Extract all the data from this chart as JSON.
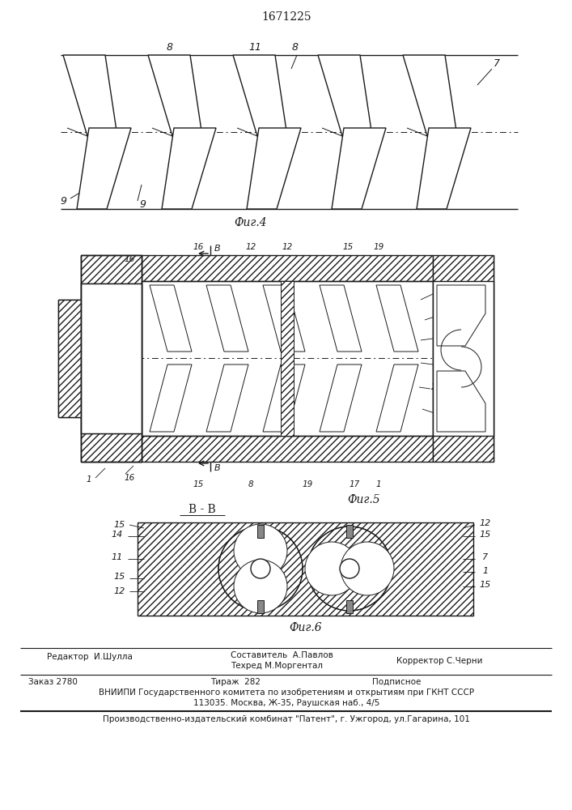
{
  "patent_number": "1671225",
  "bg_color": "#ffffff",
  "line_color": "#1a1a1a",
  "footer": {
    "editor": "Редактор  И.Шулла",
    "composer_label": "Составитель  А.Павлов",
    "techred_label": "Техред М.Моргентал",
    "corrector": "Корректор С.Черни",
    "order": "Заказ 2780",
    "tirazh": "Тираж  282",
    "podpisnoe": "Подписное",
    "vniip_line1": "ВНИИПИ Государственного комитета по изобретениям и открытиям при ГКНТ СССР",
    "vniip_line2": "113035. Москва, Ж-35, Раушская наб., 4/5",
    "factory_line": "Производственно-издательский комбинат \"Патент\", г. Ужгород, ул.Гагарина, 101"
  },
  "fig4_caption": "Фиг.4",
  "fig5_caption": "Фиг.5",
  "fig6_caption": "Фиг.6",
  "section_label": "В - В"
}
